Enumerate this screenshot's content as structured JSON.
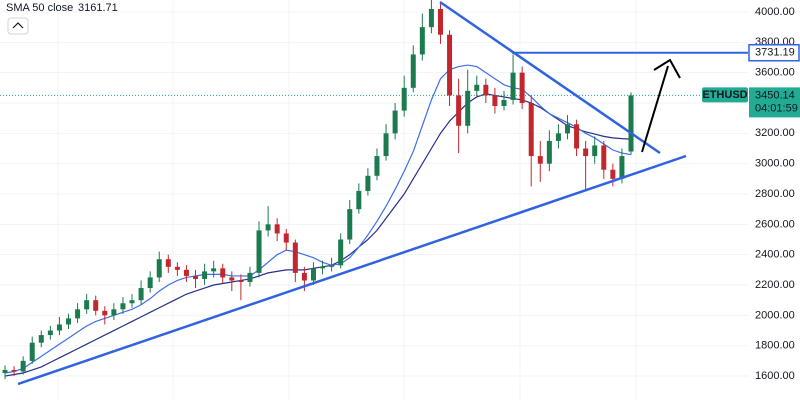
{
  "chart_data": {
    "type": "candlestick",
    "symbol": "ETHUSD",
    "up_color": "#1b7a4e",
    "down_color": "#c2272d",
    "ylim": [
      1442,
      4079
    ],
    "yticks": [
      {
        "value": 1600,
        "label": "1600.00"
      },
      {
        "value": 1800,
        "label": "1800.00"
      },
      {
        "value": 2000,
        "label": "2000.00"
      },
      {
        "value": 2200,
        "label": "2200.00"
      },
      {
        "value": 2400,
        "label": "2400.00"
      },
      {
        "value": 2600,
        "label": "2600.00"
      },
      {
        "value": 2800,
        "label": "2800.00"
      },
      {
        "value": 3000,
        "label": "3000.00"
      },
      {
        "value": 3200,
        "label": "3200.00"
      },
      {
        "value": 3400,
        "label": "3400.00"
      },
      {
        "value": 3600,
        "label": "3600.00"
      },
      {
        "value": 3800,
        "label": "3800.00"
      },
      {
        "value": 4000,
        "label": "4000.00"
      }
    ],
    "open": [
      1620,
      1640,
      1630,
      1700,
      1820,
      1870,
      1900,
      1940,
      1980,
      2040,
      2100,
      2030,
      2000,
      2040,
      2080,
      2100,
      2180,
      2250,
      2370,
      2320,
      2300,
      2260,
      2240,
      2290,
      2310,
      2250,
      2230,
      2220,
      2280,
      2560,
      2600,
      2540,
      2480,
      2280,
      2230,
      2310,
      2320,
      2330,
      2500,
      2700,
      2820,
      2920,
      3050,
      3200,
      3350,
      3500,
      3720,
      3900,
      4020,
      3850,
      3450,
      3250,
      3480,
      3520,
      3450,
      3380,
      3420,
      3600,
      3400,
      3050,
      3000,
      3150,
      3200,
      3260,
      3100,
      3050,
      3120,
      2960,
      2900,
      3080
    ],
    "high": [
      1670,
      1665,
      1730,
      1860,
      1900,
      1930,
      1990,
      2010,
      2080,
      2140,
      2130,
      2060,
      2080,
      2120,
      2140,
      2230,
      2290,
      2420,
      2400,
      2350,
      2330,
      2300,
      2340,
      2360,
      2340,
      2290,
      2270,
      2320,
      2620,
      2720,
      2640,
      2570,
      2500,
      2320,
      2350,
      2360,
      2380,
      2540,
      2760,
      2870,
      2970,
      3100,
      3260,
      3400,
      3580,
      3780,
      3990,
      4080,
      4060,
      3880,
      3560,
      3620,
      3580,
      3560,
      3500,
      3480,
      3720,
      3640,
      3450,
      3150,
      3220,
      3260,
      3320,
      3290,
      3150,
      3180,
      3150,
      3000,
      3100,
      3470
    ],
    "low": [
      1580,
      1600,
      1610,
      1680,
      1790,
      1840,
      1870,
      1910,
      1950,
      2010,
      2000,
      1940,
      1970,
      2010,
      2050,
      2070,
      2150,
      2220,
      2280,
      2260,
      2220,
      2180,
      2200,
      2250,
      2210,
      2160,
      2100,
      2190,
      2250,
      2520,
      2490,
      2430,
      2220,
      2160,
      2200,
      2270,
      2290,
      2310,
      2470,
      2670,
      2790,
      2890,
      3020,
      3160,
      3310,
      3470,
      3680,
      3860,
      3790,
      3380,
      3070,
      3200,
      3440,
      3400,
      3330,
      3350,
      3390,
      3360,
      2850,
      2880,
      2950,
      3100,
      3160,
      3050,
      2820,
      3000,
      2900,
      2850,
      2870,
      3060
    ],
    "close": [
      1640,
      1630,
      1700,
      1820,
      1870,
      1900,
      1940,
      1980,
      2040,
      2100,
      2030,
      2000,
      2040,
      2080,
      2100,
      2180,
      2250,
      2370,
      2320,
      2300,
      2260,
      2240,
      2290,
      2310,
      2250,
      2230,
      2220,
      2280,
      2560,
      2600,
      2540,
      2480,
      2280,
      2230,
      2310,
      2320,
      2330,
      2500,
      2700,
      2820,
      2920,
      3050,
      3200,
      3350,
      3500,
      3720,
      3900,
      4020,
      3850,
      3450,
      3250,
      3480,
      3520,
      3450,
      3380,
      3420,
      3600,
      3400,
      3050,
      3000,
      3150,
      3200,
      3260,
      3100,
      3050,
      3120,
      2960,
      2900,
      3050,
      3450
    ],
    "lines": [
      {
        "name": "SMA 50 close",
        "color": "#2a2e8c",
        "values": [
          1600,
          1610,
          1620,
          1640,
          1660,
          1690,
          1720,
          1750,
          1780,
          1810,
          1840,
          1870,
          1900,
          1930,
          1960,
          1990,
          2020,
          2050,
          2080,
          2110,
          2140,
          2160,
          2180,
          2200,
          2210,
          2220,
          2230,
          2240,
          2260,
          2280,
          2290,
          2300,
          2300,
          2300,
          2310,
          2320,
          2330,
          2360,
          2400,
          2450,
          2500,
          2560,
          2640,
          2720,
          2800,
          2900,
          3000,
          3100,
          3200,
          3280,
          3340,
          3400,
          3440,
          3460,
          3450,
          3440,
          3430,
          3420,
          3400,
          3370,
          3330,
          3290,
          3250,
          3230,
          3210,
          3195,
          3180,
          3170,
          3165,
          3161.71
        ]
      },
      {
        "color": "#3d6fe8",
        "values": [
          1620,
          1630,
          1650,
          1690,
          1730,
          1770,
          1810,
          1850,
          1890,
          1930,
          1960,
          1980,
          2000,
          2020,
          2040,
          2070,
          2110,
          2160,
          2200,
          2230,
          2250,
          2260,
          2270,
          2270,
          2270,
          2260,
          2260,
          2260,
          2300,
          2350,
          2400,
          2430,
          2420,
          2400,
          2380,
          2350,
          2330,
          2340,
          2380,
          2450,
          2530,
          2620,
          2720,
          2830,
          2950,
          3080,
          3250,
          3420,
          3560,
          3620,
          3640,
          3650,
          3640,
          3600,
          3560,
          3520,
          3500,
          3490,
          3440,
          3380,
          3330,
          3300,
          3270,
          3240,
          3200,
          3170,
          3130,
          3090,
          3070,
          3060
        ]
      }
    ],
    "horizontal_line": 3731.19,
    "last_price": 3450.14,
    "countdown": "04:01:59"
  }
}
